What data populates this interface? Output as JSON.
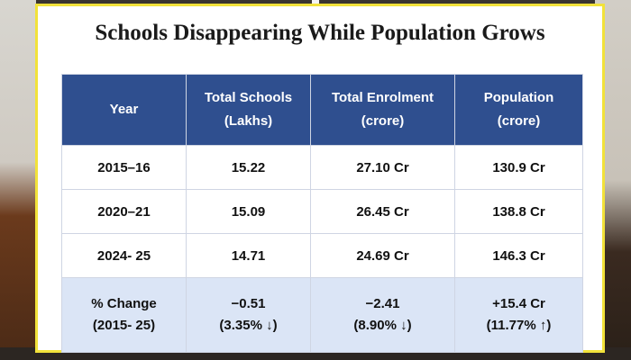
{
  "title": "Schools Disappearing While Population Grows",
  "table": {
    "headers": [
      {
        "line1": "Year",
        "line2": ""
      },
      {
        "line1": "Total Schools",
        "line2": "(Lakhs)"
      },
      {
        "line1": "Total Enrolment",
        "line2": "(crore)"
      },
      {
        "line1": "Population",
        "line2": "(crore)"
      }
    ],
    "rows": [
      [
        "2015–16",
        "15.22",
        "27.10 Cr",
        "130.9 Cr"
      ],
      [
        "2020–21",
        "15.09",
        "26.45 Cr",
        "138.8 Cr"
      ],
      [
        "2024- 25",
        "14.71",
        "24.69 Cr",
        "146.3 Cr"
      ]
    ],
    "change_row": [
      {
        "line1": "% Change",
        "line2": "(2015- 25)"
      },
      {
        "line1": "−0.51",
        "line2": "(3.35% ↓)"
      },
      {
        "line1": "−2.41",
        "line2": "(8.90% ↓)"
      },
      {
        "line1": "+15.4 Cr",
        "line2": "(11.77% ↑)"
      }
    ]
  },
  "colors": {
    "header_bg": "#2f4f8f",
    "change_row_bg": "#dbe5f6",
    "card_border": "#f2e23a"
  }
}
